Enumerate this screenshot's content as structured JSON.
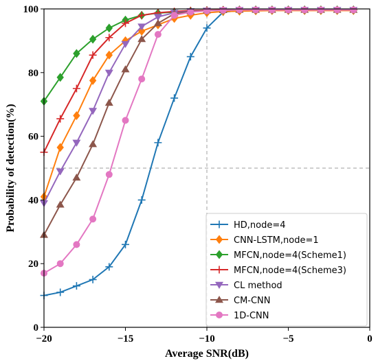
{
  "chart_data": {
    "type": "line",
    "title": "",
    "xlabel": "Average SNR(dB)",
    "ylabel": "Probability of detection(%)",
    "xlim": [
      -20,
      0
    ],
    "ylim": [
      0,
      100
    ],
    "xticks": [
      -20,
      -15,
      -10,
      -5,
      0
    ],
    "yticks": [
      0,
      20,
      40,
      60,
      80,
      100
    ],
    "grid": false,
    "reference_lines": {
      "x": -10,
      "y": 50,
      "style": "dashed",
      "color": "#b0b0b0"
    },
    "legend_position": "bottom-right",
    "series": [
      {
        "name": "HD,node=4",
        "color": "#1f77b4",
        "marker": "plus",
        "x": [
          -20,
          -19,
          -18,
          -17,
          -16,
          -15,
          -14,
          -13,
          -12,
          -11,
          -10,
          -9,
          -8,
          -7,
          -6,
          -5,
          -4,
          -3,
          -2,
          -1
        ],
        "y": [
          10,
          11,
          13,
          15,
          19,
          26,
          40,
          58,
          72,
          85,
          94,
          99,
          99.5,
          99.6,
          99.7,
          99.7,
          99.7,
          99.7,
          99.7,
          99.7
        ]
      },
      {
        "name": "CNN-LSTM,node=1",
        "color": "#ff7f0e",
        "marker": "diamond",
        "x": [
          -20,
          -19,
          -18,
          -17,
          -16,
          -15,
          -14,
          -13,
          -12,
          -11,
          -10,
          -9,
          -8,
          -7,
          -6,
          -5,
          -4,
          -3,
          -2,
          -1
        ],
        "y": [
          41,
          56.5,
          66.5,
          77.5,
          85.5,
          90,
          93,
          95,
          97,
          98,
          98.8,
          99.2,
          99.3,
          99.4,
          99.5,
          99.5,
          99.5,
          99.5,
          99.5,
          99.5
        ]
      },
      {
        "name": "MFCN,node=4(Scheme1)",
        "color": "#2ca02c",
        "marker": "diamond",
        "x": [
          -20,
          -19,
          -18,
          -17,
          -16,
          -15,
          -14,
          -13,
          -12,
          -11,
          -10,
          -9,
          -8,
          -7,
          -6,
          -5,
          -4,
          -3,
          -2,
          -1
        ],
        "y": [
          71,
          78.5,
          86,
          90.5,
          94,
          96.5,
          98,
          98.7,
          99,
          99.3,
          99.5,
          99.6,
          99.7,
          99.7,
          99.7,
          99.7,
          99.7,
          99.7,
          99.7,
          99.7
        ]
      },
      {
        "name": "MFCN,node=4(Scheme3)",
        "color": "#d62728",
        "marker": "plus",
        "x": [
          -20,
          -19,
          -18,
          -17,
          -16,
          -15,
          -14,
          -13,
          -12,
          -11,
          -10,
          -9,
          -8,
          -7,
          -6,
          -5,
          -4,
          -3,
          -2,
          -1
        ],
        "y": [
          55,
          65.5,
          75,
          85.5,
          91,
          95.5,
          98,
          98.8,
          99.2,
          99.5,
          99.6,
          99.7,
          99.7,
          99.7,
          99.7,
          99.7,
          99.7,
          99.7,
          99.7,
          99.7
        ]
      },
      {
        "name": "CL method",
        "color": "#9467bd",
        "marker": "triangle-down",
        "x": [
          -20,
          -19,
          -18,
          -17,
          -16,
          -15,
          -14,
          -13,
          -12,
          -11,
          -10,
          -9,
          -8,
          -7,
          -6,
          -5,
          -4,
          -3,
          -2,
          -1
        ],
        "y": [
          39,
          49,
          58,
          68,
          80,
          89,
          94.5,
          97.5,
          98.8,
          99.3,
          99.5,
          99.6,
          99.7,
          99.7,
          99.7,
          99.7,
          99.7,
          99.7,
          99.7,
          99.7
        ]
      },
      {
        "name": "CM-CNN",
        "color": "#8c564b",
        "marker": "triangle-up",
        "x": [
          -20,
          -19,
          -18,
          -17,
          -16,
          -15,
          -14,
          -13,
          -12,
          -11,
          -10,
          -9,
          -8,
          -7,
          -6,
          -5,
          -4,
          -3,
          -2,
          -1
        ],
        "y": [
          29,
          38.5,
          47,
          57.5,
          70.5,
          81,
          90.5,
          95.5,
          98.5,
          99.2,
          99.5,
          99.6,
          99.7,
          99.7,
          99.7,
          99.7,
          99.7,
          99.7,
          99.7,
          99.7
        ]
      },
      {
        "name": "1D-CNN",
        "color": "#e377c2",
        "marker": "circle",
        "x": [
          -20,
          -19,
          -18,
          -17,
          -16,
          -15,
          -14,
          -13,
          -12,
          -11,
          -10,
          -9,
          -8,
          -7,
          -6,
          -5,
          -4,
          -3,
          -2,
          -1
        ],
        "y": [
          17,
          20,
          26,
          34,
          48,
          65,
          78,
          92,
          98,
          99,
          99.4,
          99.6,
          99.7,
          99.7,
          99.7,
          99.7,
          99.7,
          99.7,
          99.7,
          99.7
        ]
      }
    ]
  }
}
